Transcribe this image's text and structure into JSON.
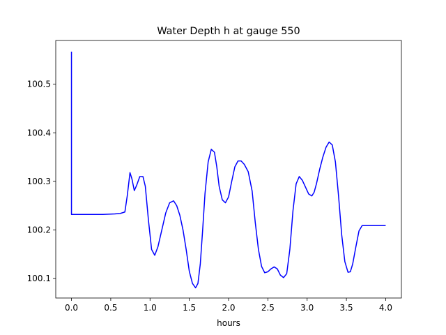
{
  "chart_data": {
    "type": "line",
    "title": "Water Depth h at gauge 550",
    "xlabel": "hours",
    "ylabel": "",
    "xlim": [
      -0.2,
      4.2
    ],
    "ylim": [
      100.06,
      100.59
    ],
    "grid": false,
    "x_ticks": [
      0.0,
      0.5,
      1.0,
      1.5,
      2.0,
      2.5,
      3.0,
      3.5,
      4.0
    ],
    "x_tick_labels": [
      "0.0",
      "0.5",
      "1.0",
      "1.5",
      "2.0",
      "2.5",
      "3.0",
      "3.5",
      "4.0"
    ],
    "y_ticks": [
      100.1,
      100.2,
      100.3,
      100.4,
      100.5
    ],
    "y_tick_labels": [
      "100.1",
      "100.2",
      "100.3",
      "100.4",
      "100.5"
    ],
    "series": [
      {
        "color": "#0000ff",
        "x": [
          0.0,
          0.0,
          0.001,
          0.02,
          0.2,
          0.4,
          0.55,
          0.62,
          0.68,
          0.71,
          0.745,
          0.77,
          0.8,
          0.83,
          0.87,
          0.91,
          0.94,
          0.98,
          1.02,
          1.06,
          1.1,
          1.15,
          1.2,
          1.25,
          1.3,
          1.34,
          1.38,
          1.42,
          1.46,
          1.5,
          1.54,
          1.58,
          1.61,
          1.64,
          1.67,
          1.7,
          1.74,
          1.78,
          1.82,
          1.85,
          1.88,
          1.92,
          1.96,
          2.0,
          2.04,
          2.08,
          2.12,
          2.16,
          2.2,
          2.25,
          2.3,
          2.34,
          2.38,
          2.42,
          2.46,
          2.5,
          2.54,
          2.58,
          2.62,
          2.66,
          2.7,
          2.74,
          2.78,
          2.82,
          2.86,
          2.9,
          2.94,
          2.98,
          3.02,
          3.06,
          3.09,
          3.12,
          3.16,
          3.2,
          3.24,
          3.28,
          3.32,
          3.36,
          3.4,
          3.44,
          3.48,
          3.52,
          3.55,
          3.58,
          3.62,
          3.66,
          3.7,
          3.74,
          3.78,
          3.82,
          3.86,
          3.9,
          3.94,
          3.98,
          4.0
        ],
        "y": [
          100.567,
          100.232,
          100.232,
          100.232,
          100.232,
          100.232,
          100.233,
          100.234,
          100.237,
          100.27,
          100.318,
          100.305,
          100.281,
          100.292,
          100.31,
          100.31,
          100.29,
          100.22,
          100.16,
          100.148,
          100.165,
          100.2,
          100.235,
          100.256,
          100.26,
          100.25,
          100.23,
          100.2,
          100.16,
          100.115,
          100.09,
          100.081,
          100.09,
          100.13,
          100.2,
          100.275,
          100.34,
          100.366,
          100.36,
          100.33,
          100.29,
          100.262,
          100.256,
          100.268,
          100.3,
          100.33,
          100.342,
          100.342,
          100.335,
          100.32,
          100.28,
          100.215,
          100.16,
          100.125,
          100.112,
          100.114,
          100.12,
          100.124,
          100.12,
          100.107,
          100.102,
          100.11,
          100.16,
          100.24,
          100.295,
          100.31,
          100.302,
          100.288,
          100.274,
          100.27,
          100.278,
          100.296,
          100.325,
          100.35,
          100.37,
          100.381,
          100.375,
          100.34,
          100.27,
          100.19,
          100.135,
          100.113,
          100.114,
          100.13,
          100.165,
          100.198,
          100.209,
          100.209,
          100.209,
          100.209,
          100.209,
          100.209,
          100.209,
          100.209,
          100.209
        ]
      }
    ]
  }
}
